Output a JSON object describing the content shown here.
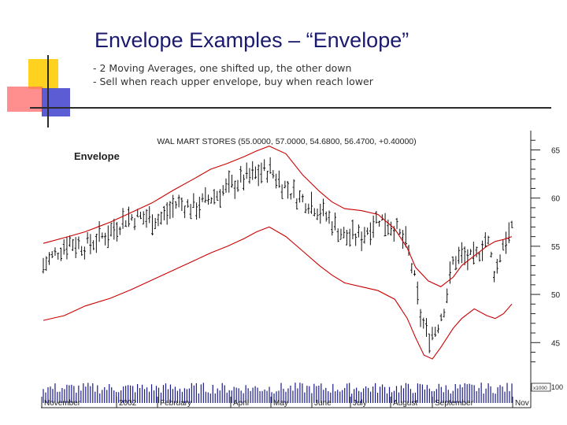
{
  "slide": {
    "title": "Envelope Examples – “Envelope”",
    "bullets": [
      "- 2 Moving Averages, one shifted up, the other down",
      "- Sell when reach upper envelope, buy when reach lower"
    ],
    "colors": {
      "title": "#1a1a6e",
      "deco_yellow": "#ffd21f",
      "deco_red": "#ff5a5a",
      "deco_blue": "#3c3cc8"
    }
  },
  "chart_data": {
    "type": "line",
    "title": "WAL MART STORES (55.0000, 57.0000, 54.6800, 56.4700, +0.40000)",
    "panel_label": "Envelope",
    "y_ticks": [
      "65",
      "60",
      "55",
      "50",
      "45"
    ],
    "ylim": [
      42,
      67
    ],
    "volume_label": "x1000",
    "volume_tick": "100",
    "months": [
      "November",
      "2002",
      "February",
      "April",
      "May",
      "June",
      "July",
      "August",
      "September",
      "Nov"
    ],
    "series": [
      {
        "color": "#cc0000",
        "values": [
          [
            0,
            55.3
          ],
          [
            6,
            56.0
          ],
          [
            10,
            56.5
          ],
          [
            16,
            57.5
          ],
          [
            21,
            58.5
          ],
          [
            26,
            59.5
          ],
          [
            31,
            60.8
          ],
          [
            36,
            62.0
          ],
          [
            40,
            63.0
          ],
          [
            44,
            63.6
          ],
          [
            48,
            64.3
          ],
          [
            51,
            64.9
          ],
          [
            54,
            65.4
          ],
          [
            58,
            64.6
          ],
          [
            62,
            62.4
          ],
          [
            66,
            60.7
          ],
          [
            69,
            59.6
          ],
          [
            72,
            58.9
          ],
          [
            76,
            58.7
          ],
          [
            80,
            58.3
          ],
          [
            84,
            56.8
          ],
          [
            87,
            54.8
          ],
          [
            89,
            52.8
          ],
          [
            92,
            51.4
          ],
          [
            95,
            50.8
          ],
          [
            98,
            51.8
          ],
          [
            100,
            53.0
          ],
          [
            103,
            54.0
          ],
          [
            106,
            55.0
          ],
          [
            108,
            55.5
          ],
          [
            110,
            55.7
          ],
          [
            112,
            56.0
          ]
        ]
      },
      {
        "color": "#cc0000",
        "values": [
          [
            0,
            47.3
          ],
          [
            5,
            47.8
          ],
          [
            10,
            48.8
          ],
          [
            16,
            49.6
          ],
          [
            21,
            50.5
          ],
          [
            26,
            51.5
          ],
          [
            31,
            52.5
          ],
          [
            36,
            53.5
          ],
          [
            40,
            54.3
          ],
          [
            44,
            55.0
          ],
          [
            48,
            55.8
          ],
          [
            51,
            56.5
          ],
          [
            54,
            57.0
          ],
          [
            58,
            56.0
          ],
          [
            62,
            54.5
          ],
          [
            66,
            53.0
          ],
          [
            69,
            52.0
          ],
          [
            72,
            51.2
          ],
          [
            76,
            50.8
          ],
          [
            80,
            50.4
          ],
          [
            84,
            49.5
          ],
          [
            87,
            47.5
          ],
          [
            89,
            45.5
          ],
          [
            91,
            43.7
          ],
          [
            93,
            43.3
          ],
          [
            95,
            44.5
          ],
          [
            98,
            46.5
          ],
          [
            100,
            47.5
          ],
          [
            103,
            48.5
          ],
          [
            106,
            47.8
          ],
          [
            108,
            47.5
          ],
          [
            110,
            48.0
          ],
          [
            112,
            49.0
          ]
        ]
      }
    ],
    "price_path": [
      [
        0,
        53.0
      ],
      [
        6,
        55.5
      ],
      [
        10,
        55.0
      ],
      [
        16,
        56.5
      ],
      [
        20,
        58.0
      ],
      [
        24,
        58.0
      ],
      [
        28,
        57.8
      ],
      [
        32,
        59.5
      ],
      [
        36,
        59.0
      ],
      [
        40,
        60.0
      ],
      [
        44,
        61.0
      ],
      [
        48,
        62.0
      ],
      [
        51,
        62.5
      ],
      [
        54,
        63.0
      ],
      [
        57,
        61.5
      ],
      [
        61,
        60.0
      ],
      [
        64,
        59.5
      ],
      [
        68,
        58.0
      ],
      [
        72,
        56.0
      ],
      [
        76,
        56.0
      ],
      [
        80,
        58.0
      ],
      [
        84,
        57.0
      ],
      [
        87,
        55.0
      ],
      [
        89,
        51.0
      ],
      [
        90,
        48.0
      ],
      [
        92,
        45.5
      ],
      [
        94,
        46.5
      ],
      [
        96,
        49.0
      ],
      [
        98,
        53.5
      ],
      [
        100,
        54.0
      ],
      [
        103,
        53.5
      ],
      [
        106,
        56.0
      ],
      [
        108,
        52.0
      ],
      [
        110,
        55.5
      ],
      [
        112,
        56.5
      ]
    ],
    "volume_level": 0.45
  }
}
